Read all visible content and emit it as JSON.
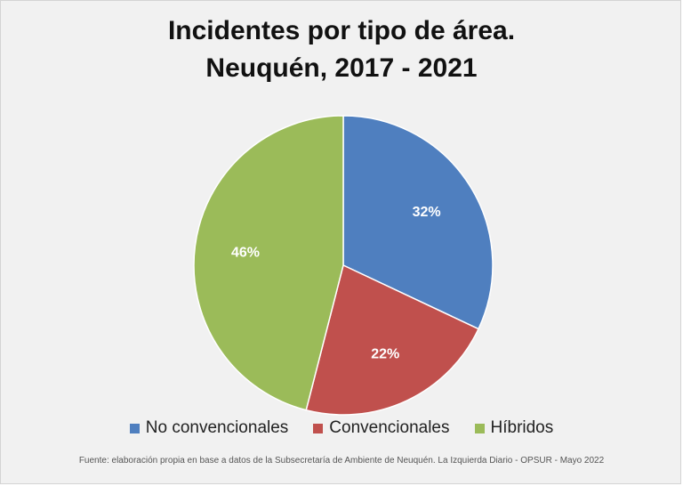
{
  "chart_data": {
    "type": "pie",
    "title": "Incidentes por tipo de área.",
    "subtitle": "Neuquén, 2017 - 2021",
    "categories": [
      "No convencionales",
      "Convencionales",
      "Híbridos"
    ],
    "values": [
      32,
      22,
      46
    ],
    "data_labels": [
      "32%",
      "22%",
      "46%"
    ],
    "colors": [
      "#4f7fbf",
      "#c0504d",
      "#9bbb59"
    ],
    "legend_position": "bottom",
    "source": "Fuente: elaboración propia en base a datos de la Subsecretaría de Ambiente de Neuquén. La Izquierda Diario - OPSUR - Mayo 2022"
  }
}
